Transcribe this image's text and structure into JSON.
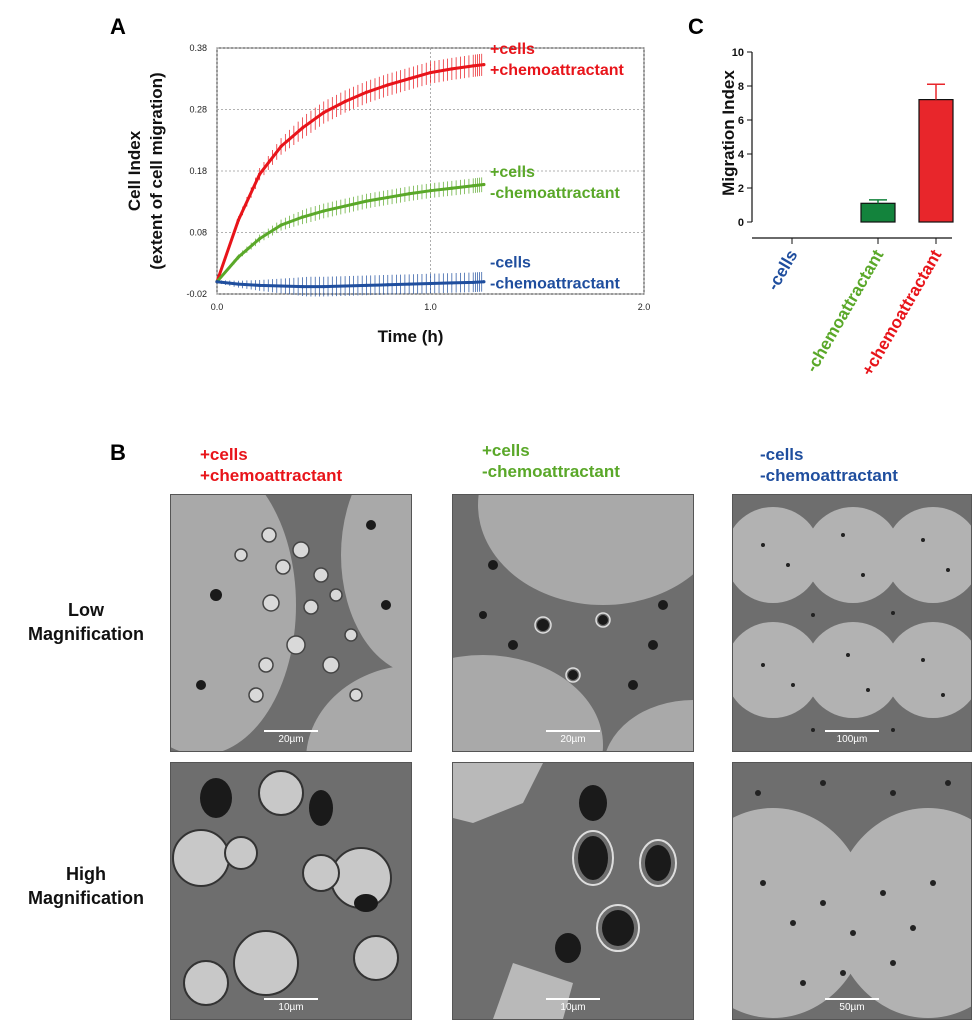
{
  "panels": {
    "a": {
      "letter": "A"
    },
    "b": {
      "letter": "B"
    },
    "c": {
      "letter": "C"
    }
  },
  "colors": {
    "red": "#e8141a",
    "green": "#5aa829",
    "blue": "#1f4e9e",
    "bar_green": "#13833c",
    "bar_red": "#e8262b"
  },
  "chart_data": [
    {
      "type": "line",
      "title": "",
      "xlabel": "Time (h)",
      "ylabel": [
        "Cell Index",
        "(extent of cell migration)"
      ],
      "xlim": [
        0.0,
        2.0
      ],
      "ylim": [
        -0.02,
        0.38
      ],
      "x_ticks": [
        "0.0",
        "1.0",
        "2.0"
      ],
      "y_ticks": [
        "0.38",
        "0.28",
        "0.18",
        "0.08",
        "-0.02"
      ],
      "grid": true,
      "series": [
        {
          "name": [
            "+cells",
            "+chemoattractant"
          ],
          "color": "#e8141a",
          "x": [
            0.0,
            0.1,
            0.2,
            0.3,
            0.4,
            0.5,
            0.6,
            0.7,
            0.8,
            0.9,
            1.0,
            1.1,
            1.2,
            1.25
          ],
          "y": [
            0.0,
            0.1,
            0.175,
            0.22,
            0.25,
            0.275,
            0.293,
            0.308,
            0.32,
            0.33,
            0.34,
            0.346,
            0.351,
            0.353
          ],
          "err": 0.018
        },
        {
          "name": [
            "+cells",
            "-chemoattractant"
          ],
          "color": "#5aa829",
          "x": [
            0.0,
            0.1,
            0.2,
            0.3,
            0.4,
            0.5,
            0.6,
            0.7,
            0.8,
            0.9,
            1.0,
            1.1,
            1.2,
            1.25
          ],
          "y": [
            0.0,
            0.04,
            0.07,
            0.092,
            0.105,
            0.115,
            0.123,
            0.131,
            0.137,
            0.143,
            0.148,
            0.152,
            0.156,
            0.158
          ],
          "err": 0.012
        },
        {
          "name": [
            "-cells",
            "-chemoattractant"
          ],
          "color": "#1f4e9e",
          "x": [
            0.0,
            0.1,
            0.2,
            0.3,
            0.4,
            0.5,
            0.6,
            0.7,
            0.8,
            0.9,
            1.0,
            1.1,
            1.2,
            1.25
          ],
          "y": [
            0.0,
            -0.004,
            -0.006,
            -0.007,
            -0.008,
            -0.008,
            -0.007,
            -0.006,
            -0.005,
            -0.004,
            -0.003,
            -0.002,
            -0.001,
            0.0
          ],
          "err": 0.016
        }
      ]
    },
    {
      "type": "bar",
      "title": "",
      "ylabel": "Migration Index",
      "ylim": [
        0,
        10
      ],
      "y_ticks": [
        "10",
        "8",
        "6",
        "4",
        "2",
        "0"
      ],
      "categories": [
        "-cells",
        "-chemoattractant",
        "+chemoattractant"
      ],
      "category_colors": [
        "#1f4e9e",
        "#5aa829",
        "#e8141a"
      ],
      "values": [
        0,
        1.1,
        7.2
      ],
      "errors": [
        0,
        0.2,
        0.9
      ],
      "bar_colors": [
        "#1f4e9e",
        "#13833c",
        "#e8262b"
      ]
    }
  ],
  "panel_b": {
    "columns": [
      {
        "line1": "+cells",
        "line2": "+chemoattractant",
        "color": "#e8141a",
        "low_scale": "20µm",
        "high_scale": "10µm"
      },
      {
        "line1": "+cells",
        "line2": "-chemoattractant",
        "color": "#5aa829",
        "low_scale": "20µm",
        "high_scale": "10µm"
      },
      {
        "line1": "-cells",
        "line2": "-chemoattractant",
        "color": "#1f4e9e",
        "low_scale": "100µm",
        "high_scale": "50µm"
      }
    ],
    "rows": [
      {
        "line1": "Low",
        "line2": "Magnification"
      },
      {
        "line1": "High",
        "line2": "Magnification"
      }
    ]
  }
}
